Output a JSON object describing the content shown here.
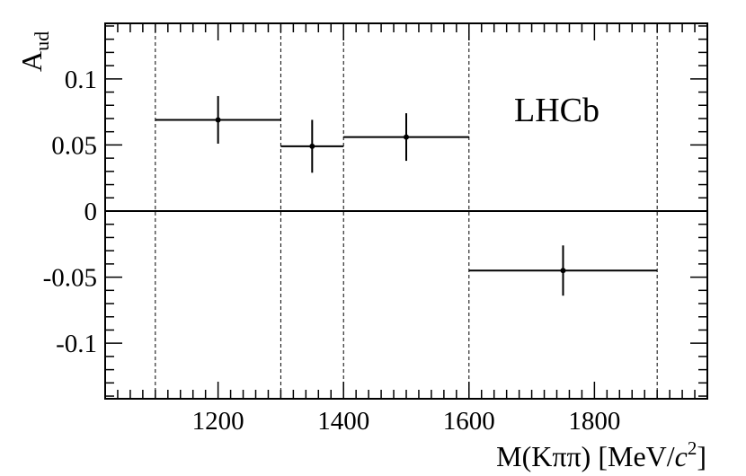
{
  "chart_data": {
    "type": "scatter",
    "title": "",
    "xlabel": {
      "main": "M(Kππ) [MeV/",
      "italic": "c",
      "sup": "2",
      "end": "]"
    },
    "ylabel": {
      "main": "A",
      "sub": "ud"
    },
    "xlim": [
      1020,
      1980
    ],
    "ylim": [
      -0.142,
      0.142
    ],
    "x_ticks": [
      1200,
      1400,
      1600,
      1800
    ],
    "x_tick_labels": [
      "1200",
      "1400",
      "1600",
      "1800"
    ],
    "y_ticks": [
      0.1,
      0.05,
      0,
      -0.05,
      -0.1
    ],
    "y_tick_labels": [
      "0.1",
      "0.05",
      "0",
      "-0.05",
      "-0.1"
    ],
    "grid": false,
    "bin_edges": [
      1100,
      1300,
      1400,
      1600,
      1900
    ],
    "points": [
      {
        "x": 1200,
        "x_low": 1100,
        "x_high": 1300,
        "y": 0.069,
        "y_err": 0.018
      },
      {
        "x": 1350,
        "x_low": 1300,
        "x_high": 1400,
        "y": 0.049,
        "y_err": 0.02
      },
      {
        "x": 1500,
        "x_low": 1400,
        "x_high": 1600,
        "y": 0.056,
        "y_err": 0.018
      },
      {
        "x": 1750,
        "x_low": 1600,
        "x_high": 1900,
        "y": -0.045,
        "y_err": 0.019
      }
    ],
    "annotations": [
      {
        "text": "LHCb",
        "x": 1740,
        "y": 0.068
      }
    ]
  }
}
